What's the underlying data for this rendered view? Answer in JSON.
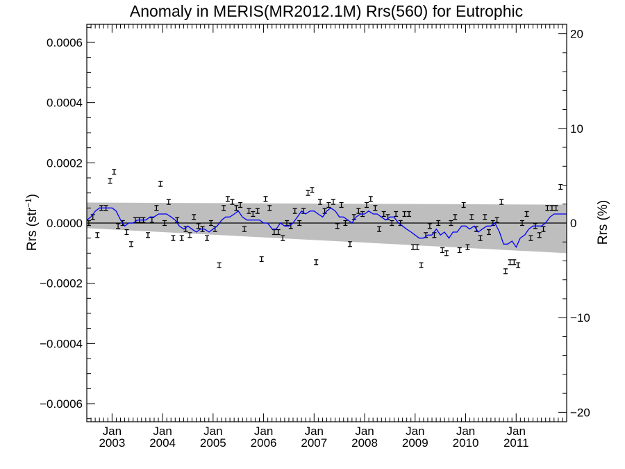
{
  "chart_data": {
    "type": "scatter",
    "title": "Anomaly in MERIS(MR2012.1M) Rrs(560) for Eutrophic",
    "ylabel_main": "Rrs (str",
    "ylabel_sup": "−1",
    "ylabel_close": ")",
    "ylabel_right": "Rrs (%)",
    "xlim": [
      2002.5,
      2012.0
    ],
    "ylim": [
      -0.00066,
      0.00066
    ],
    "ylim_right": [
      -21.0,
      21.0
    ],
    "x_ticks": [
      {
        "x": 2003.0,
        "top": "Jan",
        "bottom": "2003"
      },
      {
        "x": 2004.0,
        "top": "Jan",
        "bottom": "2004"
      },
      {
        "x": 2005.0,
        "top": "Jan",
        "bottom": "2005"
      },
      {
        "x": 2006.0,
        "top": "Jan",
        "bottom": "2006"
      },
      {
        "x": 2007.0,
        "top": "Jan",
        "bottom": "2007"
      },
      {
        "x": 2008.0,
        "top": "Jan",
        "bottom": "2008"
      },
      {
        "x": 2009.0,
        "top": "Jan",
        "bottom": "2009"
      },
      {
        "x": 2010.0,
        "top": "Jan",
        "bottom": "2010"
      },
      {
        "x": 2011.0,
        "top": "Jan",
        "bottom": "2011"
      }
    ],
    "y_ticks": [
      {
        "v": 0.0006,
        "label": "0.0006"
      },
      {
        "v": 0.0004,
        "label": "0.0004"
      },
      {
        "v": 0.0002,
        "label": "0.0002"
      },
      {
        "v": 0.0,
        "label": "0.0000"
      },
      {
        "v": -0.0002,
        "label": "−0.0002"
      },
      {
        "v": -0.0004,
        "label": "−0.0004"
      },
      {
        "v": -0.0006,
        "label": "−0.0006"
      }
    ],
    "y_ticks_right": [
      {
        "v": 20,
        "label": "20"
      },
      {
        "v": 10,
        "label": "10"
      },
      {
        "v": 0,
        "label": "0"
      },
      {
        "v": -10,
        "label": "−10"
      },
      {
        "v": -20,
        "label": "−20"
      }
    ],
    "band_upper": [
      [
        2002.5,
        6.8e-05
      ],
      [
        2012.0,
        6.1e-05
      ]
    ],
    "band_lower": [
      [
        2002.5,
        -1.7e-05
      ],
      [
        2012.0,
        -0.0001
      ]
    ],
    "zero_line": 0.0,
    "points": [
      [
        2002.54,
        0.0
      ],
      [
        2002.62,
        2e-05
      ],
      [
        2002.71,
        -4e-05
      ],
      [
        2002.79,
        5e-05
      ],
      [
        2002.88,
        5e-05
      ],
      [
        2002.96,
        0.00014
      ],
      [
        2003.04,
        0.00017
      ],
      [
        2003.12,
        -1e-05
      ],
      [
        2003.21,
        0.0
      ],
      [
        2003.29,
        -3e-05
      ],
      [
        2003.38,
        -7e-05
      ],
      [
        2003.46,
        1e-05
      ],
      [
        2003.54,
        1e-05
      ],
      [
        2003.62,
        1e-05
      ],
      [
        2003.71,
        -4e-05
      ],
      [
        2003.79,
        1e-05
      ],
      [
        2003.88,
        5e-05
      ],
      [
        2003.96,
        0.00013
      ],
      [
        2004.04,
        0.0
      ],
      [
        2004.12,
        7e-05
      ],
      [
        2004.21,
        -5e-05
      ],
      [
        2004.29,
        1e-05
      ],
      [
        2004.38,
        -5e-05
      ],
      [
        2004.46,
        -2e-05
      ],
      [
        2004.54,
        -4e-05
      ],
      [
        2004.62,
        2e-05
      ],
      [
        2004.71,
        -1e-05
      ],
      [
        2004.79,
        -2e-05
      ],
      [
        2004.88,
        -5e-05
      ],
      [
        2004.96,
        0.0
      ],
      [
        2005.04,
        -2e-05
      ],
      [
        2005.12,
        -0.00014
      ],
      [
        2005.21,
        5e-05
      ],
      [
        2005.29,
        8e-05
      ],
      [
        2005.38,
        7e-05
      ],
      [
        2005.46,
        5e-05
      ],
      [
        2005.54,
        6e-05
      ],
      [
        2005.62,
        -2e-05
      ],
      [
        2005.71,
        4e-05
      ],
      [
        2005.79,
        3e-05
      ],
      [
        2005.88,
        4e-05
      ],
      [
        2005.96,
        -0.00012
      ],
      [
        2006.04,
        8e-05
      ],
      [
        2006.12,
        5e-05
      ],
      [
        2006.21,
        -3e-05
      ],
      [
        2006.29,
        -3e-05
      ],
      [
        2006.38,
        -5e-05
      ],
      [
        2006.46,
        0.0
      ],
      [
        2006.54,
        -1e-05
      ],
      [
        2006.62,
        4e-05
      ],
      [
        2006.71,
        0.0
      ],
      [
        2006.79,
        4e-05
      ],
      [
        2006.88,
        0.0001
      ],
      [
        2006.96,
        0.00011
      ],
      [
        2007.04,
        -0.00013
      ],
      [
        2007.12,
        7e-05
      ],
      [
        2007.21,
        4e-05
      ],
      [
        2007.29,
        6e-05
      ],
      [
        2007.38,
        7e-05
      ],
      [
        2007.46,
        -1e-05
      ],
      [
        2007.54,
        6e-05
      ],
      [
        2007.62,
        0.0
      ],
      [
        2007.71,
        -7e-05
      ],
      [
        2007.79,
        2e-05
      ],
      [
        2007.88,
        4e-05
      ],
      [
        2007.96,
        3e-05
      ],
      [
        2008.04,
        6e-05
      ],
      [
        2008.12,
        8e-05
      ],
      [
        2008.21,
        5e-05
      ],
      [
        2008.29,
        -2e-05
      ],
      [
        2008.38,
        3e-05
      ],
      [
        2008.46,
        2e-05
      ],
      [
        2008.54,
        0.0
      ],
      [
        2008.62,
        3e-05
      ],
      [
        2008.71,
        0.0
      ],
      [
        2008.79,
        3e-05
      ],
      [
        2008.88,
        3e-05
      ],
      [
        2008.96,
        -8e-05
      ],
      [
        2009.04,
        -8e-05
      ],
      [
        2009.12,
        -0.00014
      ],
      [
        2009.21,
        -4e-05
      ],
      [
        2009.29,
        -1e-05
      ],
      [
        2009.38,
        -4e-05
      ],
      [
        2009.46,
        0.0
      ],
      [
        2009.54,
        -9e-05
      ],
      [
        2009.62,
        -0.0001
      ],
      [
        2009.71,
        0.0
      ],
      [
        2009.79,
        2e-05
      ],
      [
        2009.88,
        -9e-05
      ],
      [
        2009.96,
        6e-05
      ],
      [
        2010.04,
        -8e-05
      ],
      [
        2010.12,
        2e-05
      ],
      [
        2010.21,
        -2e-05
      ],
      [
        2010.29,
        -5e-05
      ],
      [
        2010.38,
        2e-05
      ],
      [
        2010.46,
        -3e-05
      ],
      [
        2010.54,
        0.0
      ],
      [
        2010.62,
        1e-05
      ],
      [
        2010.71,
        7e-05
      ],
      [
        2010.79,
        -0.00016
      ],
      [
        2010.88,
        -0.00013
      ],
      [
        2010.96,
        -0.00013
      ],
      [
        2011.04,
        -0.00014
      ],
      [
        2011.12,
        0.0
      ],
      [
        2011.21,
        3e-05
      ],
      [
        2011.29,
        -5e-05
      ],
      [
        2011.38,
        -1e-05
      ],
      [
        2011.46,
        -4e-05
      ],
      [
        2011.54,
        -2e-05
      ],
      [
        2011.62,
        5e-05
      ],
      [
        2011.71,
        5e-05
      ],
      [
        2011.79,
        5e-05
      ],
      [
        2011.88,
        0.00012
      ]
    ],
    "smooth_line": [
      [
        2002.5,
        1e-05
      ],
      [
        2002.58,
        2e-05
      ],
      [
        2002.67,
        4e-05
      ],
      [
        2002.75,
        5e-05
      ],
      [
        2002.83,
        5e-05
      ],
      [
        2002.92,
        5e-05
      ],
      [
        2003.0,
        5e-05
      ],
      [
        2003.08,
        4e-05
      ],
      [
        2003.17,
        1e-05
      ],
      [
        2003.25,
        -1e-05
      ],
      [
        2003.33,
        0.0
      ],
      [
        2003.42,
        0.0
      ],
      [
        2003.5,
        1e-05
      ],
      [
        2003.58,
        1e-05
      ],
      [
        2003.67,
        1e-05
      ],
      [
        2003.75,
        2e-05
      ],
      [
        2003.83,
        2e-05
      ],
      [
        2003.92,
        3e-05
      ],
      [
        2004.0,
        3e-05
      ],
      [
        2004.08,
        3e-05
      ],
      [
        2004.17,
        2e-05
      ],
      [
        2004.25,
        1e-05
      ],
      [
        2004.33,
        -1e-05
      ],
      [
        2004.42,
        -2e-05
      ],
      [
        2004.5,
        -1e-05
      ],
      [
        2004.58,
        -2e-05
      ],
      [
        2004.67,
        -3e-05
      ],
      [
        2004.75,
        -2e-05
      ],
      [
        2004.83,
        -2e-05
      ],
      [
        2004.92,
        -3e-05
      ],
      [
        2005.0,
        -2e-05
      ],
      [
        2005.08,
        -1e-05
      ],
      [
        2005.17,
        1e-05
      ],
      [
        2005.25,
        2e-05
      ],
      [
        2005.33,
        2e-05
      ],
      [
        2005.42,
        3e-05
      ],
      [
        2005.5,
        4e-05
      ],
      [
        2005.58,
        2e-05
      ],
      [
        2005.67,
        1e-05
      ],
      [
        2005.75,
        1e-05
      ],
      [
        2005.83,
        1e-05
      ],
      [
        2005.92,
        1e-05
      ],
      [
        2006.0,
        0.0
      ],
      [
        2006.08,
        0.0
      ],
      [
        2006.17,
        -2e-05
      ],
      [
        2006.25,
        -2e-05
      ],
      [
        2006.33,
        0.0
      ],
      [
        2006.42,
        -1e-05
      ],
      [
        2006.5,
        -1e-05
      ],
      [
        2006.58,
        0.0
      ],
      [
        2006.67,
        2e-05
      ],
      [
        2006.75,
        4e-05
      ],
      [
        2006.83,
        3e-05
      ],
      [
        2006.92,
        4e-05
      ],
      [
        2007.0,
        4e-05
      ],
      [
        2007.08,
        3e-05
      ],
      [
        2007.17,
        2e-05
      ],
      [
        2007.25,
        4e-05
      ],
      [
        2007.33,
        5e-05
      ],
      [
        2007.42,
        4e-05
      ],
      [
        2007.5,
        2e-05
      ],
      [
        2007.58,
        2e-05
      ],
      [
        2007.67,
        1e-05
      ],
      [
        2007.75,
        0.0
      ],
      [
        2007.83,
        2e-05
      ],
      [
        2007.92,
        3e-05
      ],
      [
        2008.0,
        3e-05
      ],
      [
        2008.08,
        4e-05
      ],
      [
        2008.17,
        3e-05
      ],
      [
        2008.25,
        3e-05
      ],
      [
        2008.33,
        2e-05
      ],
      [
        2008.42,
        1e-05
      ],
      [
        2008.5,
        2e-05
      ],
      [
        2008.58,
        2e-05
      ],
      [
        2008.67,
        0.0
      ],
      [
        2008.75,
        -1e-05
      ],
      [
        2008.83,
        -2e-05
      ],
      [
        2008.92,
        -3e-05
      ],
      [
        2009.0,
        -4e-05
      ],
      [
        2009.08,
        -5e-05
      ],
      [
        2009.17,
        -5e-05
      ],
      [
        2009.25,
        -4e-05
      ],
      [
        2009.33,
        -4e-05
      ],
      [
        2009.42,
        -2e-05
      ],
      [
        2009.5,
        -4e-05
      ],
      [
        2009.58,
        -3e-05
      ],
      [
        2009.67,
        -5e-05
      ],
      [
        2009.75,
        -3e-05
      ],
      [
        2009.83,
        -3e-05
      ],
      [
        2009.92,
        -1e-05
      ],
      [
        2010.0,
        -1e-05
      ],
      [
        2010.08,
        -2e-05
      ],
      [
        2010.17,
        -1e-05
      ],
      [
        2010.25,
        -3e-05
      ],
      [
        2010.33,
        -2e-05
      ],
      [
        2010.42,
        -1e-05
      ],
      [
        2010.5,
        -1e-05
      ],
      [
        2010.58,
        0.0
      ],
      [
        2010.67,
        -3e-05
      ],
      [
        2010.75,
        -7e-05
      ],
      [
        2010.83,
        -7e-05
      ],
      [
        2010.92,
        -6e-05
      ],
      [
        2011.0,
        -8e-05
      ],
      [
        2011.08,
        -5e-05
      ],
      [
        2011.17,
        -4e-05
      ],
      [
        2011.25,
        -2e-05
      ],
      [
        2011.33,
        -1e-05
      ],
      [
        2011.42,
        -1e-05
      ],
      [
        2011.5,
        -1e-05
      ],
      [
        2011.58,
        0.0
      ],
      [
        2011.67,
        2e-05
      ],
      [
        2011.75,
        3e-05
      ],
      [
        2011.83,
        3e-05
      ],
      [
        2011.92,
        3e-05
      ],
      [
        2012.0,
        3e-05
      ]
    ],
    "error_half_width": 8e-06,
    "grid": false,
    "legend": "none",
    "colors": {
      "band": "#bebebe",
      "smooth_line": "#0000ff",
      "points": "#000000",
      "zero_line": "#000000",
      "axes": "#000000"
    }
  }
}
